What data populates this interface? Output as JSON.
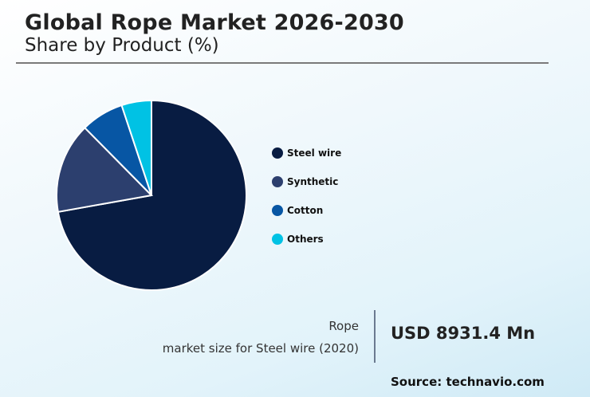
{
  "header": {
    "title": "Global Rope Market 2026-2030",
    "subtitle": "Share by Product (%)"
  },
  "legend": {
    "items": [
      {
        "label": "Steel wire",
        "color": "#081c42"
      },
      {
        "label": "Synthetic",
        "color": "#2c3f6e"
      },
      {
        "label": "Cotton",
        "color": "#0756a4"
      },
      {
        "label": "Others",
        "color": "#00c2e4"
      }
    ]
  },
  "stat": {
    "label_line1": "Rope",
    "label_line2": "market size for Steel wire (2020)",
    "value": "USD 8931.4 Mn"
  },
  "footer": {
    "source": "Source: technavio.com"
  },
  "chart_data": {
    "type": "pie",
    "title": "Global Rope Market 2026-2030",
    "subtitle": "Share by Product (%)",
    "categories": [
      "Steel wire",
      "Synthetic",
      "Cotton",
      "Others"
    ],
    "values": [
      72.2,
      15.4,
      7.3,
      5.1
    ],
    "colors": [
      "#081c42",
      "#2c3f6e",
      "#0756a4",
      "#00c2e4"
    ],
    "start_angle": "12 o'clock, clockwise",
    "legend_position": "right",
    "annotations": [
      "Rope market size for Steel wire (2020): USD 8931.4 Mn"
    ]
  }
}
